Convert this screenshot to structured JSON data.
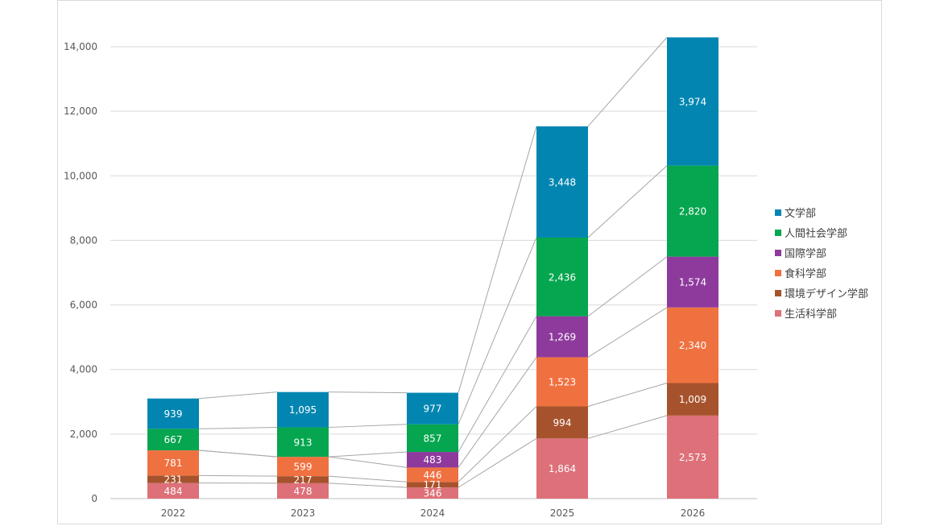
{
  "chart_data": {
    "type": "bar",
    "stacked": true,
    "title": "",
    "xlabel": "",
    "ylabel": "",
    "ylim": [
      0,
      14000
    ],
    "yticks": [
      0,
      2000,
      4000,
      6000,
      8000,
      10000,
      12000,
      14000
    ],
    "ytick_labels": [
      "0",
      "2,000",
      "4,000",
      "6,000",
      "8,000",
      "10,000",
      "12,000",
      "14,000"
    ],
    "grid": true,
    "series_lines": true,
    "legend_position": "right",
    "categories": [
      "2022",
      "2023",
      "2024",
      "2025",
      "2026"
    ],
    "series": [
      {
        "name": "生活科学部",
        "color": "#dd7079",
        "values": [
          484,
          478,
          346,
          1864,
          2573
        ],
        "labels": [
          "484",
          "478",
          "346",
          "1,864",
          "2,573"
        ]
      },
      {
        "name": "環境デザイン学部",
        "color": "#a6532d",
        "values": [
          231,
          217,
          171,
          994,
          1009
        ],
        "labels": [
          "231",
          "217",
          "171",
          "994",
          "1,009"
        ]
      },
      {
        "name": "食科学部",
        "color": "#f07140",
        "values": [
          781,
          599,
          446,
          1523,
          2340
        ],
        "labels": [
          "781",
          "599",
          "446",
          "1,523",
          "2,340"
        ]
      },
      {
        "name": "国際学部",
        "color": "#8e3a9d",
        "values": [
          0,
          0,
          483,
          1269,
          1574
        ],
        "labels": [
          "",
          "",
          "483",
          "1,269",
          "1,574"
        ]
      },
      {
        "name": "人間社会学部",
        "color": "#05a64f",
        "values": [
          667,
          913,
          857,
          2436,
          2820
        ],
        "labels": [
          "667",
          "913",
          "857",
          "2,436",
          "2,820"
        ]
      },
      {
        "name": "文学部",
        "color": "#0286b1",
        "values": [
          939,
          1095,
          977,
          3448,
          3974
        ],
        "labels": [
          "939",
          "1,095",
          "977",
          "3,448",
          "3,974"
        ]
      }
    ],
    "legend_order": [
      "文学部",
      "人間社会学部",
      "国際学部",
      "食科学部",
      "環境デザイン学部",
      "生活科学部"
    ]
  }
}
